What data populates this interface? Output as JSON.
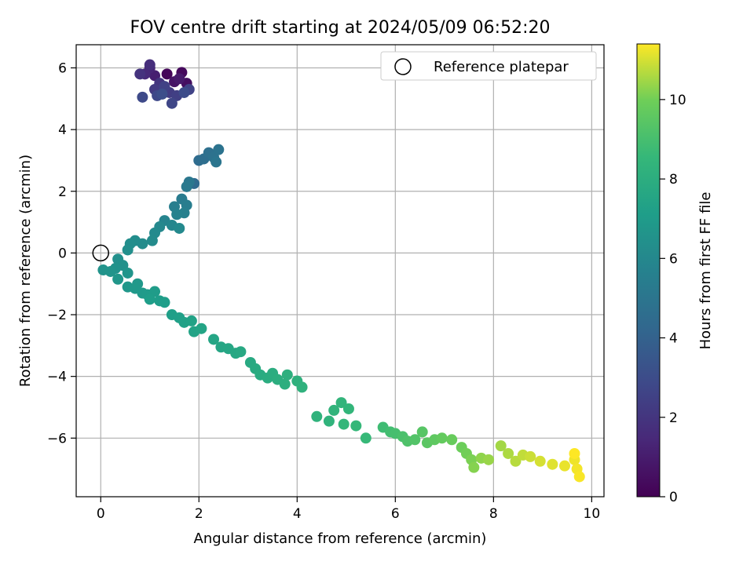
{
  "chart_data": {
    "type": "scatter",
    "title": "FOV centre drift starting at 2024/05/09 06:52:20",
    "xlabel": "Angular distance from reference (arcmin)",
    "ylabel": "Rotation from reference (arcmin)",
    "colorbar_label": "Hours from first FF file",
    "xlim": [
      -0.5,
      10.25
    ],
    "ylim": [
      -7.9,
      6.75
    ],
    "xticks": [
      0,
      2,
      4,
      6,
      8,
      10
    ],
    "yticks": [
      -6,
      -4,
      -2,
      0,
      2,
      4,
      6
    ],
    "xtick_labels": [
      "0",
      "2",
      "4",
      "6",
      "8",
      "10"
    ],
    "ytick_labels": [
      "−6",
      "−4",
      "−2",
      "0",
      "2",
      "4",
      "6"
    ],
    "colorbar_range": [
      0,
      11.4
    ],
    "colorbar_ticks": [
      0,
      2,
      4,
      6,
      8,
      10
    ],
    "colorbar_tick_labels": [
      "0",
      "2",
      "4",
      "6",
      "8",
      "10"
    ],
    "colormap": "viridis",
    "grid": true,
    "legend_position": "top-right",
    "legend_entries": [
      "Reference platepar"
    ],
    "reference_point": {
      "x": 0,
      "y": 0
    },
    "points": [
      {
        "x": 1.35,
        "y": 5.8,
        "t": 0.2
      },
      {
        "x": 1.65,
        "y": 5.85,
        "t": 0.3
      },
      {
        "x": 1.75,
        "y": 5.5,
        "t": 0.5
      },
      {
        "x": 1.5,
        "y": 5.55,
        "t": 0.7
      },
      {
        "x": 1.6,
        "y": 5.65,
        "t": 0.9
      },
      {
        "x": 1.1,
        "y": 5.75,
        "t": 1.1
      },
      {
        "x": 1.0,
        "y": 6.0,
        "t": 1.3
      },
      {
        "x": 0.9,
        "y": 5.8,
        "t": 1.5
      },
      {
        "x": 1.0,
        "y": 6.1,
        "t": 1.7
      },
      {
        "x": 0.8,
        "y": 5.8,
        "t": 1.9
      },
      {
        "x": 1.2,
        "y": 5.5,
        "t": 2.0
      },
      {
        "x": 1.1,
        "y": 5.3,
        "t": 2.2
      },
      {
        "x": 1.4,
        "y": 5.2,
        "t": 2.3
      },
      {
        "x": 1.55,
        "y": 5.1,
        "t": 2.4
      },
      {
        "x": 1.3,
        "y": 5.4,
        "t": 2.5
      },
      {
        "x": 1.8,
        "y": 5.3,
        "t": 2.6
      },
      {
        "x": 1.45,
        "y": 4.85,
        "t": 2.7
      },
      {
        "x": 1.15,
        "y": 5.1,
        "t": 2.8
      },
      {
        "x": 0.85,
        "y": 5.05,
        "t": 2.9
      },
      {
        "x": 1.7,
        "y": 5.2,
        "t": 3.0
      },
      {
        "x": 1.25,
        "y": 5.15,
        "t": 3.1
      },
      {
        "x": 1.9,
        "y": 2.25,
        "t": 4.4
      },
      {
        "x": 2.0,
        "y": 3.0,
        "t": 4.5
      },
      {
        "x": 2.1,
        "y": 3.05,
        "t": 4.6
      },
      {
        "x": 2.2,
        "y": 3.25,
        "t": 4.7
      },
      {
        "x": 2.3,
        "y": 3.1,
        "t": 4.8
      },
      {
        "x": 2.4,
        "y": 3.35,
        "t": 4.9
      },
      {
        "x": 2.35,
        "y": 2.95,
        "t": 5.0
      },
      {
        "x": 1.8,
        "y": 2.3,
        "t": 5.1
      },
      {
        "x": 1.75,
        "y": 2.15,
        "t": 5.2
      },
      {
        "x": 1.65,
        "y": 1.75,
        "t": 5.3
      },
      {
        "x": 1.75,
        "y": 1.55,
        "t": 5.4
      },
      {
        "x": 1.5,
        "y": 1.5,
        "t": 5.5
      },
      {
        "x": 1.7,
        "y": 1.3,
        "t": 5.6
      },
      {
        "x": 1.55,
        "y": 1.25,
        "t": 5.7
      },
      {
        "x": 1.3,
        "y": 1.05,
        "t": 5.8
      },
      {
        "x": 1.45,
        "y": 0.9,
        "t": 5.9
      },
      {
        "x": 1.2,
        "y": 0.85,
        "t": 6.0
      },
      {
        "x": 1.6,
        "y": 0.8,
        "t": 6.05
      },
      {
        "x": 1.1,
        "y": 0.65,
        "t": 6.1
      },
      {
        "x": 1.05,
        "y": 0.4,
        "t": 6.15
      },
      {
        "x": 0.85,
        "y": 0.3,
        "t": 6.2
      },
      {
        "x": 0.7,
        "y": 0.4,
        "t": 6.25
      },
      {
        "x": 0.6,
        "y": 0.3,
        "t": 6.3
      },
      {
        "x": 0.55,
        "y": 0.1,
        "t": 6.35
      },
      {
        "x": 0.35,
        "y": -0.2,
        "t": 6.4
      },
      {
        "x": 0.45,
        "y": -0.4,
        "t": 6.45
      },
      {
        "x": 0.3,
        "y": -0.5,
        "t": 6.5
      },
      {
        "x": 0.05,
        "y": -0.55,
        "t": 6.55
      },
      {
        "x": 0.2,
        "y": -0.6,
        "t": 6.6
      },
      {
        "x": 0.55,
        "y": -0.65,
        "t": 6.65
      },
      {
        "x": 0.35,
        "y": -0.85,
        "t": 6.7
      },
      {
        "x": 0.55,
        "y": -1.1,
        "t": 6.75
      },
      {
        "x": 0.75,
        "y": -1.0,
        "t": 6.8
      },
      {
        "x": 0.7,
        "y": -1.15,
        "t": 6.85
      },
      {
        "x": 0.85,
        "y": -1.3,
        "t": 6.9
      },
      {
        "x": 0.95,
        "y": -1.35,
        "t": 6.95
      },
      {
        "x": 1.1,
        "y": -1.25,
        "t": 7.0
      },
      {
        "x": 1.2,
        "y": -1.55,
        "t": 7.05
      },
      {
        "x": 1.3,
        "y": -1.6,
        "t": 7.1
      },
      {
        "x": 1.0,
        "y": -1.5,
        "t": 7.15
      },
      {
        "x": 1.45,
        "y": -2.0,
        "t": 7.2
      },
      {
        "x": 1.6,
        "y": -2.1,
        "t": 7.25
      },
      {
        "x": 1.7,
        "y": -2.25,
        "t": 7.3
      },
      {
        "x": 1.85,
        "y": -2.2,
        "t": 7.35
      },
      {
        "x": 1.9,
        "y": -2.55,
        "t": 7.4
      },
      {
        "x": 2.05,
        "y": -2.45,
        "t": 7.45
      },
      {
        "x": 2.3,
        "y": -2.8,
        "t": 7.5
      },
      {
        "x": 2.45,
        "y": -3.05,
        "t": 7.55
      },
      {
        "x": 2.6,
        "y": -3.1,
        "t": 7.6
      },
      {
        "x": 2.75,
        "y": -3.25,
        "t": 7.65
      },
      {
        "x": 2.85,
        "y": -3.2,
        "t": 7.7
      },
      {
        "x": 3.05,
        "y": -3.55,
        "t": 7.75
      },
      {
        "x": 3.15,
        "y": -3.75,
        "t": 7.8
      },
      {
        "x": 3.25,
        "y": -3.95,
        "t": 7.85
      },
      {
        "x": 3.4,
        "y": -4.05,
        "t": 7.9
      },
      {
        "x": 3.5,
        "y": -3.9,
        "t": 7.95
      },
      {
        "x": 3.6,
        "y": -4.1,
        "t": 8.0
      },
      {
        "x": 3.75,
        "y": -4.25,
        "t": 8.05
      },
      {
        "x": 3.8,
        "y": -3.95,
        "t": 8.1
      },
      {
        "x": 4.0,
        "y": -4.15,
        "t": 8.15
      },
      {
        "x": 4.1,
        "y": -4.35,
        "t": 8.2
      },
      {
        "x": 4.4,
        "y": -5.3,
        "t": 8.25
      },
      {
        "x": 4.65,
        "y": -5.45,
        "t": 8.3
      },
      {
        "x": 4.75,
        "y": -5.1,
        "t": 8.35
      },
      {
        "x": 4.9,
        "y": -4.85,
        "t": 8.4
      },
      {
        "x": 5.05,
        "y": -5.05,
        "t": 8.45
      },
      {
        "x": 4.95,
        "y": -5.55,
        "t": 8.5
      },
      {
        "x": 5.2,
        "y": -5.6,
        "t": 8.55
      },
      {
        "x": 5.4,
        "y": -6.0,
        "t": 8.6
      },
      {
        "x": 5.75,
        "y": -5.65,
        "t": 8.8
      },
      {
        "x": 5.9,
        "y": -5.8,
        "t": 8.9
      },
      {
        "x": 6.0,
        "y": -5.85,
        "t": 9.0
      },
      {
        "x": 6.15,
        "y": -5.95,
        "t": 9.1
      },
      {
        "x": 6.25,
        "y": -6.1,
        "t": 9.2
      },
      {
        "x": 6.4,
        "y": -6.05,
        "t": 9.3
      },
      {
        "x": 6.55,
        "y": -5.8,
        "t": 9.4
      },
      {
        "x": 6.65,
        "y": -6.15,
        "t": 9.5
      },
      {
        "x": 6.8,
        "y": -6.05,
        "t": 9.6
      },
      {
        "x": 6.95,
        "y": -6.0,
        "t": 9.7
      },
      {
        "x": 7.15,
        "y": -6.05,
        "t": 9.8
      },
      {
        "x": 7.35,
        "y": -6.3,
        "t": 9.9
      },
      {
        "x": 7.45,
        "y": -6.5,
        "t": 10.0
      },
      {
        "x": 7.55,
        "y": -6.7,
        "t": 10.1
      },
      {
        "x": 7.6,
        "y": -6.95,
        "t": 10.2
      },
      {
        "x": 7.75,
        "y": -6.65,
        "t": 10.3
      },
      {
        "x": 7.9,
        "y": -6.7,
        "t": 10.4
      },
      {
        "x": 8.15,
        "y": -6.25,
        "t": 10.5
      },
      {
        "x": 8.3,
        "y": -6.5,
        "t": 10.6
      },
      {
        "x": 8.45,
        "y": -6.75,
        "t": 10.7
      },
      {
        "x": 8.6,
        "y": -6.55,
        "t": 10.8
      },
      {
        "x": 8.75,
        "y": -6.6,
        "t": 10.9
      },
      {
        "x": 8.95,
        "y": -6.75,
        "t": 11.0
      },
      {
        "x": 9.2,
        "y": -6.85,
        "t": 11.1
      },
      {
        "x": 9.45,
        "y": -6.9,
        "t": 11.2
      },
      {
        "x": 9.65,
        "y": -6.7,
        "t": 11.25
      },
      {
        "x": 9.7,
        "y": -7.0,
        "t": 11.3
      },
      {
        "x": 9.75,
        "y": -7.25,
        "t": 11.35
      },
      {
        "x": 9.65,
        "y": -6.5,
        "t": 11.4
      }
    ]
  }
}
